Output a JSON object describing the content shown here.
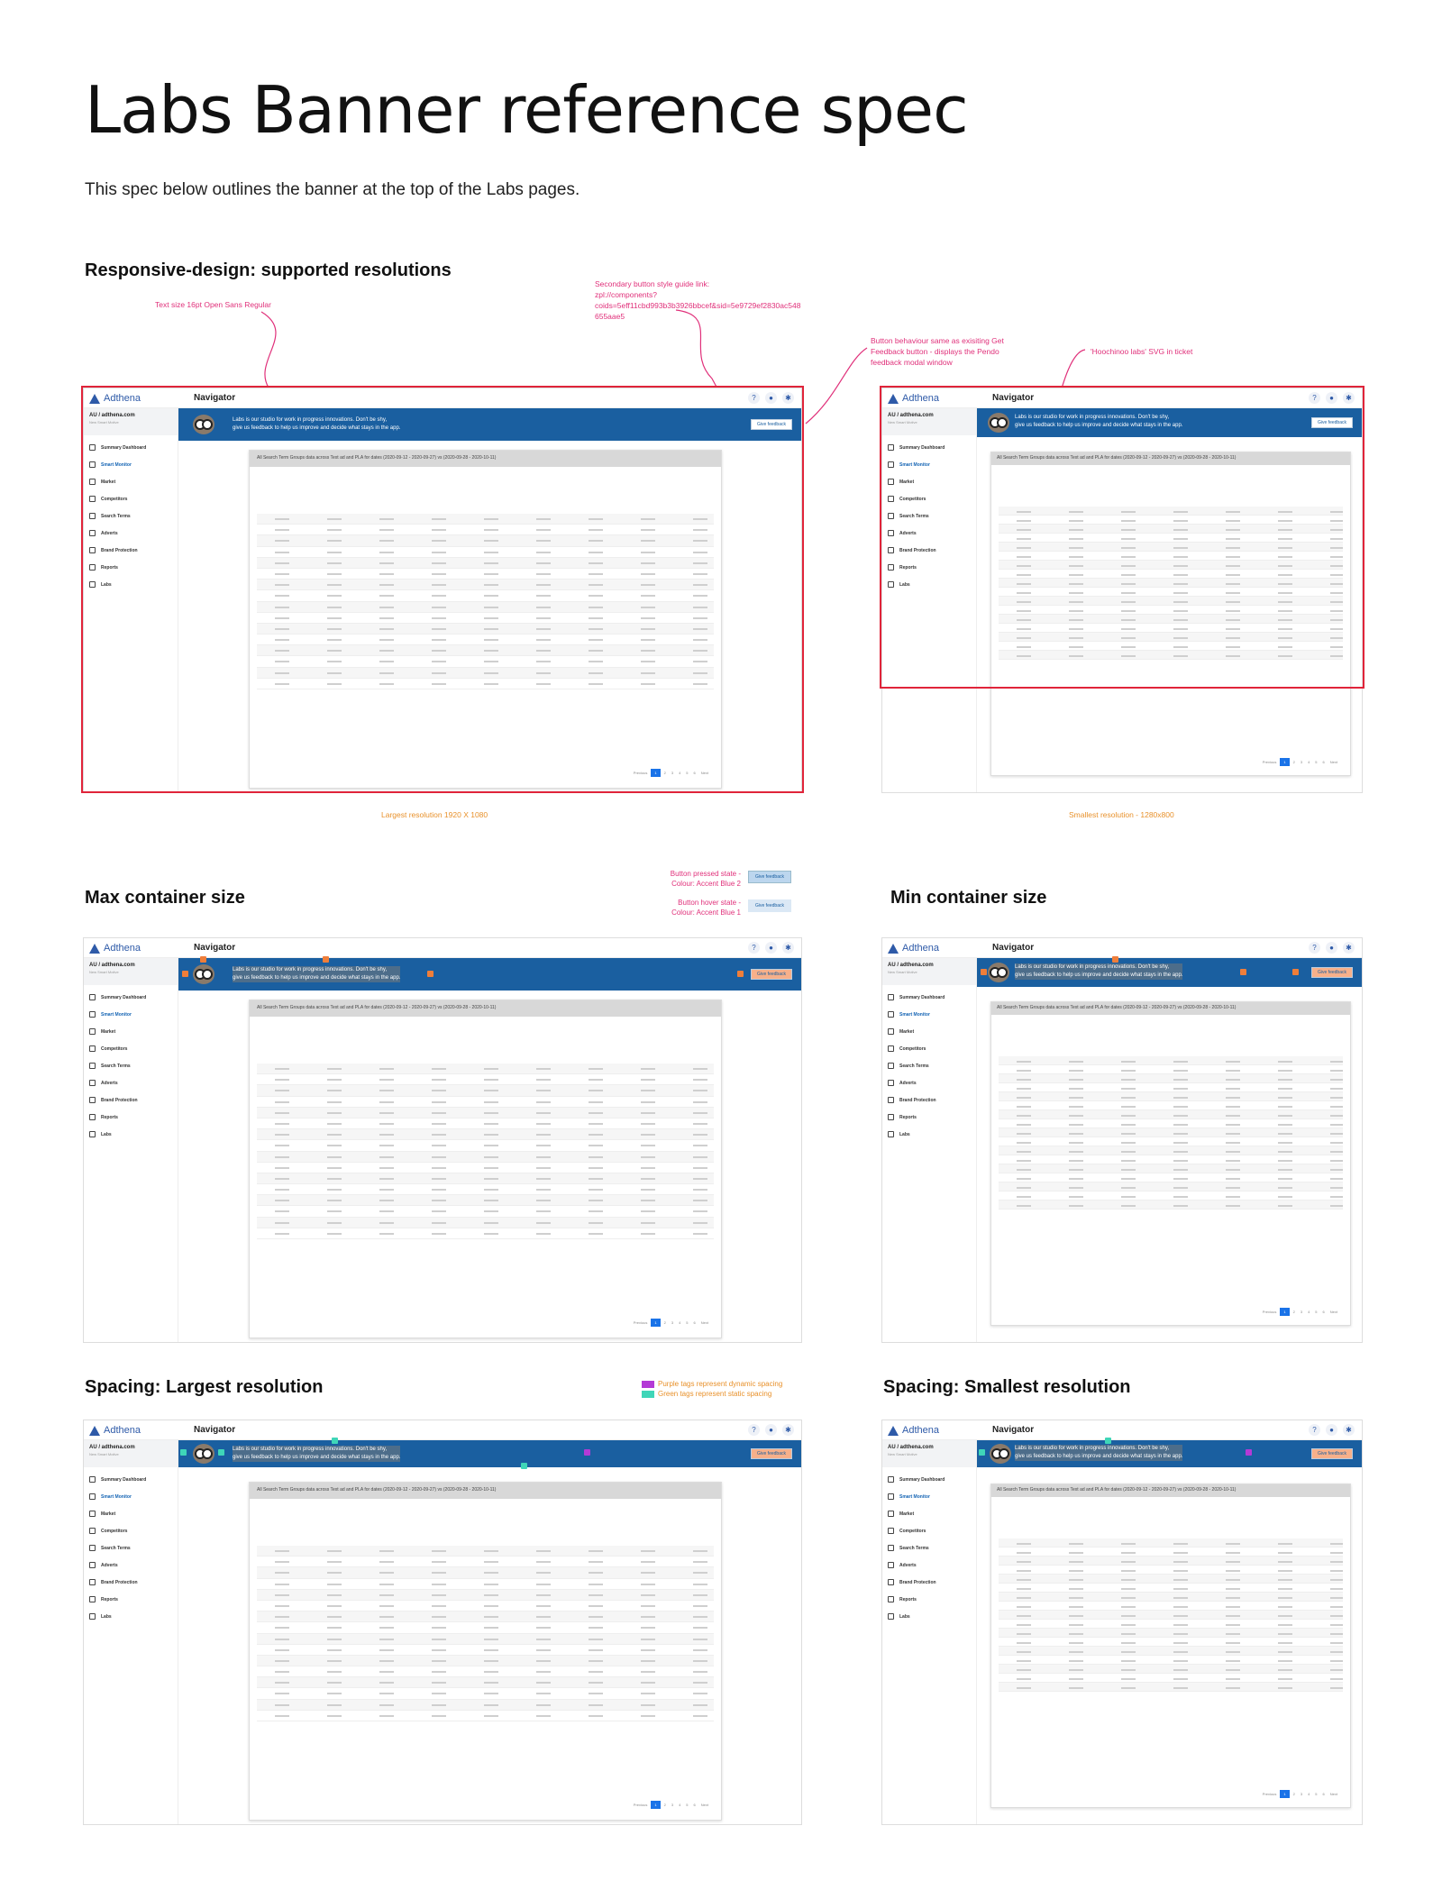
{
  "title": "Labs Banner reference spec",
  "subtitle": "This spec below outlines the banner at the top of the Labs pages.",
  "sections": {
    "responsive": "Responsive-design: supported resolutions",
    "max": "Max container size",
    "min": "Min container size",
    "spacing_large": "Spacing: Largest resolution",
    "spacing_small": "Spacing: Smallest resolution"
  },
  "notes": {
    "text_size": "Text size 16pt Open Sans Regular",
    "secondary_btn_1": "Secondary button style guide link:",
    "secondary_btn_2": "zpl://components?",
    "secondary_btn_3": "coids=5eff11cbd993b3b3926bbcef&sid=5e9729ef2830ac548",
    "secondary_btn_4": "655aae5",
    "behaviour_1": "Button behaviour same as exisiting Get",
    "behaviour_2": "Feedback button - displays the Pendo",
    "behaviour_3": "feedback modal window",
    "svg_note": "'Hoochinoo labs' SVG in ticket",
    "largest_res": "Largest resolution 1920 X 1080",
    "smallest_res": "Smallest resolution - 1280x800",
    "pressed_1": "Button pressed state -",
    "pressed_2": "Colour: Accent Blue 2",
    "hover_1": "Button hover state -",
    "hover_2": "Colour: Accent Blue 1",
    "legend_purple": "Purple tags represent dynamic spacing",
    "legend_green": "Green tags represent static spacing"
  },
  "app": {
    "logo": "Adthena",
    "nav": "Navigator",
    "account": "AU / adthena.com",
    "account_sub": "New Smart Motive",
    "banner_line1": "Labs is our studio for work in progress innovations. Don't be shy,",
    "banner_line2": "give us feedback to help us improve and decide what stays in the app.",
    "feedback_btn": "Give feedback",
    "card_head_large": "All Search Term Groups data across Text ad and PLA for dates (2020-09-12 - 2020-09-27) vs (2020-09-28 - 2020-10-11)",
    "sidebar": [
      "Summary Dashboard",
      "Smart Monitor",
      "Market",
      "Competitors",
      "Search Terms",
      "Adverts",
      "Brand Protection",
      "Reports",
      "Labs"
    ],
    "pager": [
      "Previous",
      "1",
      "2",
      "3",
      "4",
      "5",
      "6",
      "Next"
    ]
  },
  "colors": {
    "banner_blue": "#1a5fa0",
    "pressed_blue": "#bcd6ee",
    "hover_blue": "#dbe8f5",
    "highlight_red": "#e0243a",
    "annotation_pink": "#e0307a",
    "caption_orange": "#e8912b",
    "tag_purple": "#b43ad6",
    "tag_green": "#3fd6b8"
  }
}
